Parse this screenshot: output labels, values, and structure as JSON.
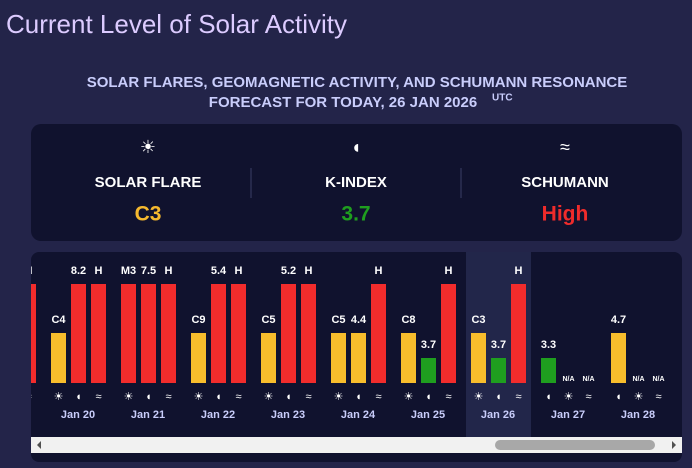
{
  "header": {
    "title": "Current Level of Solar Activity",
    "subtitle_line1": "SOLAR FLARES, GEOMAGNETIC ACTIVITY, AND SCHUMANN RESONANCE",
    "subtitle_line2": "FORECAST FOR TODAY, 26 JAN 2026",
    "subtitle_sup": "UTC"
  },
  "summary": [
    {
      "kind": "flare",
      "label": "SOLAR FLARE",
      "value": "C3",
      "color": "#f5b82e"
    },
    {
      "kind": "kp",
      "label": "K-INDEX",
      "value": 3.7,
      "color": "#1f9e1f"
    },
    {
      "kind": "schumann",
      "label": "SCHUMANN",
      "value": "High",
      "color": "#ef2b2b"
    }
  ],
  "timeline": {
    "days": [
      {
        "date": null,
        "bars": [
          {
            "kind": "flare",
            "label": null,
            "color": null
          },
          {
            "kind": "kp",
            "value": null,
            "color": null
          },
          {
            "kind": "schumann",
            "label": "H",
            "color": "#f22c2c"
          }
        ]
      },
      {
        "date": "Jan 20",
        "bars": [
          {
            "kind": "flare",
            "label": "C4",
            "color": "#f8bd2c"
          },
          {
            "kind": "kp",
            "value": 8.2,
            "color": "#f22c2c"
          },
          {
            "kind": "schumann",
            "label": "H",
            "color": "#f22c2c"
          }
        ]
      },
      {
        "date": "Jan 21",
        "bars": [
          {
            "kind": "flare",
            "label": "M3",
            "color": "#f22c2c"
          },
          {
            "kind": "kp",
            "value": 7.5,
            "color": "#f22c2c"
          },
          {
            "kind": "schumann",
            "label": "H",
            "color": "#f22c2c"
          }
        ]
      },
      {
        "date": "Jan 22",
        "bars": [
          {
            "kind": "flare",
            "label": "C9",
            "color": "#f8bd2c"
          },
          {
            "kind": "kp",
            "value": 5.4,
            "color": "#f22c2c"
          },
          {
            "kind": "schumann",
            "label": "H",
            "color": "#f22c2c"
          }
        ]
      },
      {
        "date": "Jan 23",
        "bars": [
          {
            "kind": "flare",
            "label": "C5",
            "color": "#f8bd2c"
          },
          {
            "kind": "kp",
            "value": 5.2,
            "color": "#f22c2c"
          },
          {
            "kind": "schumann",
            "label": "H",
            "color": "#f22c2c"
          }
        ]
      },
      {
        "date": "Jan 24",
        "bars": [
          {
            "kind": "flare",
            "label": "C5",
            "color": "#f8bd2c"
          },
          {
            "kind": "kp",
            "value": 4.4,
            "color": "#f8bd2c"
          },
          {
            "kind": "schumann",
            "label": "H",
            "color": "#f22c2c"
          }
        ]
      },
      {
        "date": "Jan 25",
        "bars": [
          {
            "kind": "flare",
            "label": "C8",
            "color": "#f8bd2c"
          },
          {
            "kind": "kp",
            "value": 3.7,
            "color": "#1f9e1f"
          },
          {
            "kind": "schumann",
            "label": "H",
            "color": "#f22c2c"
          }
        ]
      },
      {
        "date": "Jan 26",
        "highlight": true,
        "bars": [
          {
            "kind": "flare",
            "label": "C3",
            "color": "#f8bd2c"
          },
          {
            "kind": "kp",
            "value": 3.7,
            "color": "#1f9e1f"
          },
          {
            "kind": "schumann",
            "label": "H",
            "color": "#f22c2c"
          }
        ]
      },
      {
        "date": "Jan 27",
        "bars": [
          {
            "kind": "kp",
            "value": 3.3,
            "color": "#1f9e1f"
          },
          {
            "kind": "flare",
            "label": "N/A",
            "color": null
          },
          {
            "kind": "schumann",
            "label": "N/A",
            "color": null
          }
        ]
      },
      {
        "date": "Jan 28",
        "bars": [
          {
            "kind": "kp",
            "value": 4.7,
            "color": "#f8bd2c"
          },
          {
            "kind": "flare",
            "label": "N/A",
            "color": null
          },
          {
            "kind": "schumann",
            "label": "N/A",
            "color": null
          }
        ]
      }
    ]
  }
}
